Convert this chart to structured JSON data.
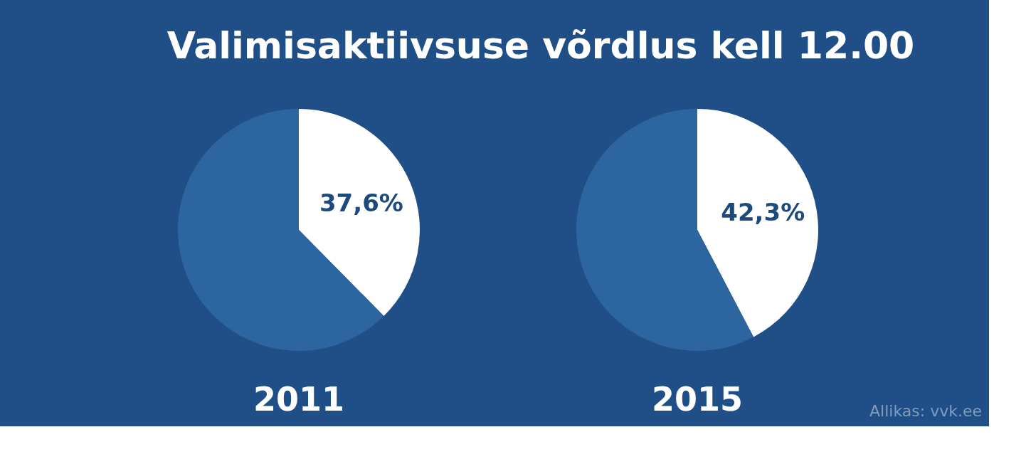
{
  "chart_data": [
    {
      "type": "pie",
      "title": "Valimisaktiivsuse võrdlus kell 12.00",
      "xlabel": "2011",
      "categories": [
        null,
        null
      ],
      "values": [
        37.6,
        62.4
      ],
      "colors": [
        "#ffffff",
        "#2d65a0"
      ],
      "value_labels": [
        "37,6%",
        null
      ],
      "legend": false
    },
    {
      "type": "pie",
      "xlabel": "2015",
      "categories": [
        null,
        null
      ],
      "values": [
        42.3,
        57.7
      ],
      "colors": [
        "#ffffff",
        "#2d65a0"
      ],
      "value_labels": [
        "42,3%",
        null
      ],
      "legend": false,
      "annotations": [
        "Allikas: vvk.ee"
      ]
    }
  ]
}
